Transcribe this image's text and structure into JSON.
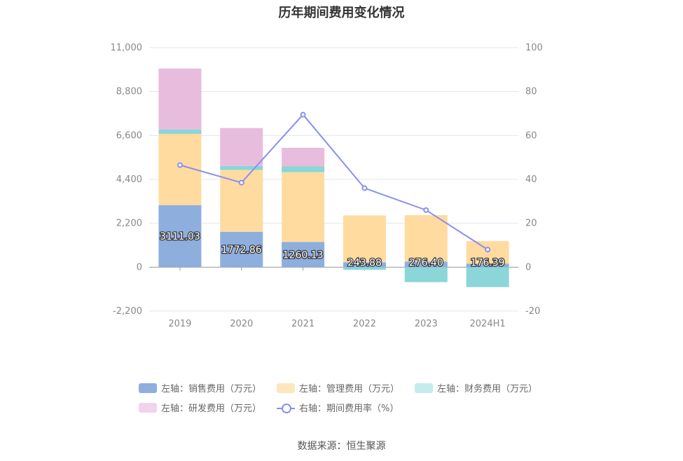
{
  "chart_data": {
    "type": "bar",
    "title": "历年期间费用变化情况",
    "categories": [
      "2019",
      "2020",
      "2021",
      "2022",
      "2023",
      "2024H1"
    ],
    "left_axis": {
      "min": -2200,
      "max": 11000,
      "ticks": [
        "-2,200",
        "0",
        "2,200",
        "4,400",
        "6,600",
        "8,800",
        "11,000"
      ],
      "tick_values": [
        -2200,
        0,
        2200,
        4400,
        6600,
        8800,
        11000
      ]
    },
    "right_axis": {
      "min": -20,
      "max": 100,
      "ticks": [
        "-20",
        "0",
        "20",
        "40",
        "60",
        "80",
        "100"
      ],
      "tick_values": [
        -20,
        0,
        20,
        40,
        60,
        80,
        100
      ]
    },
    "series": [
      {
        "name": "左轴：销售费用（万元）",
        "type": "bar",
        "color": "#8eaede",
        "values": [
          3111.03,
          1772.86,
          1260.13,
          243.88,
          276.4,
          176.39
        ],
        "labels": [
          "3111.03",
          "1772.86",
          "1260.13",
          "243.88",
          "276.40",
          "176.39"
        ]
      },
      {
        "name": "左轴：管理费用（万元）",
        "type": "bar",
        "color": "#ffdba0",
        "values": [
          3570,
          3100,
          3500,
          2350,
          2330,
          1130
        ]
      },
      {
        "name": "左轴：财务费用（万元）",
        "type": "bar",
        "color": "#8ad6d8",
        "values": [
          220,
          200,
          290,
          -130,
          -750,
          -1000
        ]
      },
      {
        "name": "左轴：研发费用（万元）",
        "type": "bar",
        "color": "#e8bcdc",
        "values": [
          3050,
          1900,
          930,
          0,
          0,
          0
        ]
      },
      {
        "name": "右轴：期间费用率（%）",
        "type": "line",
        "color": "#8a8ff0",
        "values": [
          46.5,
          38.5,
          69.5,
          36,
          26,
          8
        ]
      }
    ],
    "grid": true,
    "legend_position": "bottom"
  },
  "source": "数据来源：恒生聚源"
}
